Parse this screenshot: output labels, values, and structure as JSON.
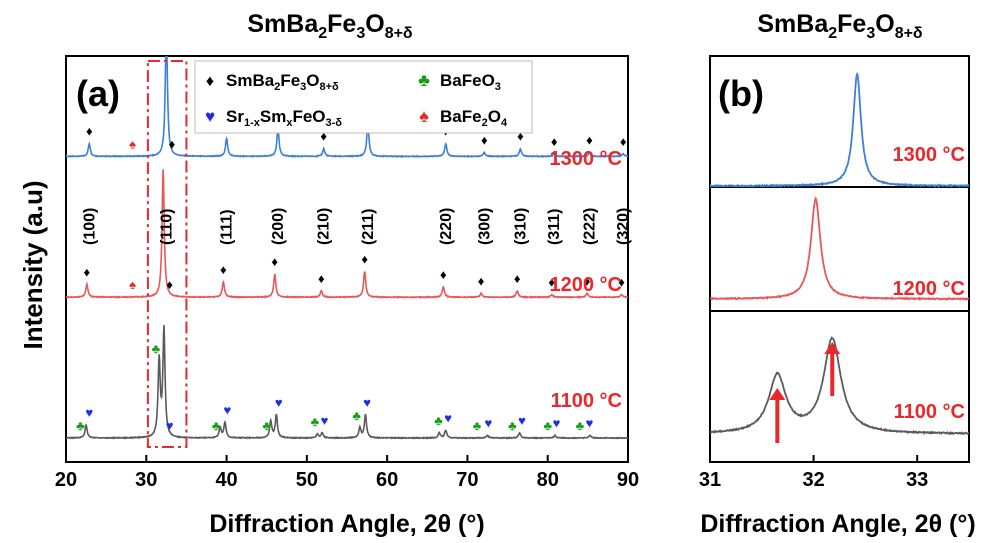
{
  "figure": {
    "titles": [
      {
        "main": "SmBa",
        "s1": "2",
        "m2": "Fe",
        "s2": "3",
        "m3": "O",
        "s3": "8+δ"
      },
      {
        "main": "SmBa",
        "s1": "2",
        "m2": "Fe",
        "s2": "3",
        "m3": "O",
        "s3": "8+δ"
      }
    ],
    "ylabel": "Intensity (a.u)",
    "panel_labels": [
      "(a)",
      "(b)"
    ]
  },
  "legend": {
    "items": [
      {
        "symbol": "♦",
        "color": "#000000",
        "base": "SmBa",
        "s1": "2",
        "b2": "Fe",
        "s2": "3",
        "b3": "O",
        "s3": "8+δ"
      },
      {
        "symbol": "♣",
        "color": "#1a9e1a",
        "base": "BaFeO",
        "s1": "3",
        "b2": "",
        "s2": "",
        "b3": "",
        "s3": ""
      },
      {
        "symbol": "♥",
        "color": "#1e2ee6",
        "base": "Sr",
        "s1": "1-x",
        "b2": "Sm",
        "s2": "x",
        "b3": "FeO",
        "s3": "3-δ"
      },
      {
        "symbol": "♠",
        "color": "#e8282a",
        "base": "BaFe",
        "s1": "2",
        "b2": "O",
        "s2": "4",
        "b3": "",
        "s3": ""
      }
    ]
  },
  "colors": {
    "1300": "#3f7fd6",
    "1200": "#e8575a",
    "1100": "#5a5a5a",
    "temp_text": "#e8282a",
    "box": "#e8282a",
    "arrow": "#e8282a"
  },
  "chart_data": [
    {
      "type": "line",
      "panel": "(a)",
      "xlabel": "Diffraction Angle, 2θ (°)",
      "ylabel": "Intensity (a.u)",
      "xlim": [
        20,
        90
      ],
      "xticks": [
        20,
        30,
        40,
        50,
        60,
        70,
        80,
        90
      ],
      "y_ticks_shown": false,
      "series": [
        {
          "name": "1300 °C",
          "color": "#3f7fd6",
          "offset": 2.2,
          "peaks": [
            [
              22.9,
              0.1
            ],
            [
              32.5,
              1.0
            ],
            [
              40.0,
              0.14
            ],
            [
              46.4,
              0.22
            ],
            [
              52.1,
              0.06
            ],
            [
              57.6,
              0.26
            ],
            [
              67.3,
              0.1
            ],
            [
              72.1,
              0.03
            ],
            [
              76.6,
              0.06
            ],
            [
              80.8,
              0.02
            ],
            [
              85.2,
              0.03
            ],
            [
              89.4,
              0.02
            ]
          ]
        },
        {
          "name": "1200 °C",
          "color": "#e8575a",
          "offset": 1.1,
          "peaks": [
            [
              22.6,
              0.1
            ],
            [
              32.1,
              1.0
            ],
            [
              39.6,
              0.12
            ],
            [
              46.0,
              0.18
            ],
            [
              51.8,
              0.05
            ],
            [
              57.2,
              0.2
            ],
            [
              67.0,
              0.08
            ],
            [
              71.7,
              0.03
            ],
            [
              76.2,
              0.05
            ],
            [
              80.5,
              0.02
            ],
            [
              84.9,
              0.03
            ],
            [
              89.2,
              0.02
            ]
          ]
        },
        {
          "name": "1100 °C",
          "color": "#5a5a5a",
          "offset": 0.0,
          "peaks": [
            [
              22.5,
              0.1
            ],
            [
              31.6,
              0.6
            ],
            [
              32.2,
              0.84
            ],
            [
              39.2,
              0.08
            ],
            [
              39.8,
              0.12
            ],
            [
              45.5,
              0.13
            ],
            [
              46.2,
              0.18
            ],
            [
              51.3,
              0.03
            ],
            [
              51.9,
              0.04
            ],
            [
              56.6,
              0.08
            ],
            [
              57.3,
              0.18
            ],
            [
              66.5,
              0.04
            ],
            [
              67.3,
              0.06
            ],
            [
              72.5,
              0.02
            ],
            [
              76.5,
              0.04
            ],
            [
              80.9,
              0.02
            ],
            [
              85.3,
              0.02
            ]
          ]
        }
      ],
      "hkl_labels": [
        {
          "x": 22.9,
          "label": "(100)"
        },
        {
          "x": 32.5,
          "label": "(110)"
        },
        {
          "x": 40.0,
          "label": "(111)"
        },
        {
          "x": 46.4,
          "label": "(200)"
        },
        {
          "x": 52.1,
          "label": "(210)"
        },
        {
          "x": 57.6,
          "label": "(211)"
        },
        {
          "x": 67.3,
          "label": "(220)"
        },
        {
          "x": 72.1,
          "label": "(300)"
        },
        {
          "x": 76.6,
          "label": "(310)"
        },
        {
          "x": 80.8,
          "label": "(311)"
        },
        {
          "x": 85.2,
          "label": "(222)"
        },
        {
          "x": 89.4,
          "label": "(320)"
        }
      ],
      "temperature_labels": [
        "1300 °C",
        "1200 °C",
        "1100 °C"
      ],
      "highlight_box_x": [
        30.2,
        35.0
      ],
      "markers": [
        {
          "series": 0,
          "x": 22.9,
          "symbol": "♦",
          "color": "#000000"
        },
        {
          "series": 0,
          "x": 28.3,
          "symbol": "♠",
          "color": "#e8282a"
        },
        {
          "series": 0,
          "x": 33.2,
          "symbol": "♦",
          "color": "#000000"
        },
        {
          "series": 0,
          "x": 40.0,
          "symbol": "♦",
          "color": "#000000"
        },
        {
          "series": 0,
          "x": 46.4,
          "symbol": "♦",
          "color": "#000000"
        },
        {
          "series": 0,
          "x": 52.1,
          "symbol": "♦",
          "color": "#000000"
        },
        {
          "series": 0,
          "x": 57.6,
          "symbol": "♦",
          "color": "#000000"
        },
        {
          "series": 0,
          "x": 67.3,
          "symbol": "♦",
          "color": "#000000"
        },
        {
          "series": 0,
          "x": 72.1,
          "symbol": "♦",
          "color": "#000000"
        },
        {
          "series": 0,
          "x": 76.6,
          "symbol": "♦",
          "color": "#000000"
        },
        {
          "series": 0,
          "x": 80.8,
          "symbol": "♦",
          "color": "#000000"
        },
        {
          "series": 0,
          "x": 85.2,
          "symbol": "♦",
          "color": "#000000"
        },
        {
          "series": 0,
          "x": 89.4,
          "symbol": "♦",
          "color": "#000000"
        },
        {
          "series": 1,
          "x": 22.6,
          "symbol": "♦",
          "color": "#000000"
        },
        {
          "series": 1,
          "x": 28.3,
          "symbol": "♠",
          "color": "#e8282a"
        },
        {
          "series": 1,
          "x": 32.9,
          "symbol": "♦",
          "color": "#000000"
        },
        {
          "series": 1,
          "x": 39.6,
          "symbol": "♦",
          "color": "#000000"
        },
        {
          "series": 1,
          "x": 46.0,
          "symbol": "♦",
          "color": "#000000"
        },
        {
          "series": 1,
          "x": 51.8,
          "symbol": "♦",
          "color": "#000000"
        },
        {
          "series": 1,
          "x": 57.2,
          "symbol": "♦",
          "color": "#000000"
        },
        {
          "series": 1,
          "x": 67.0,
          "symbol": "♦",
          "color": "#000000"
        },
        {
          "series": 1,
          "x": 71.7,
          "symbol": "♦",
          "color": "#000000"
        },
        {
          "series": 1,
          "x": 76.2,
          "symbol": "♦",
          "color": "#000000"
        },
        {
          "series": 1,
          "x": 80.5,
          "symbol": "♦",
          "color": "#000000"
        },
        {
          "series": 1,
          "x": 84.9,
          "symbol": "♦",
          "color": "#000000"
        },
        {
          "series": 1,
          "x": 89.2,
          "symbol": "♦",
          "color": "#000000"
        },
        {
          "series": 2,
          "x": 21.8,
          "symbol": "♣",
          "color": "#1a9e1a"
        },
        {
          "series": 2,
          "x": 22.9,
          "symbol": "♥",
          "color": "#1e2ee6"
        },
        {
          "series": 2,
          "x": 31.2,
          "symbol": "♣",
          "color": "#1a9e1a"
        },
        {
          "series": 2,
          "x": 32.9,
          "symbol": "♥",
          "color": "#1e2ee6"
        },
        {
          "series": 2,
          "x": 38.7,
          "symbol": "♣",
          "color": "#1a9e1a"
        },
        {
          "series": 2,
          "x": 40.1,
          "symbol": "♥",
          "color": "#1e2ee6"
        },
        {
          "series": 2,
          "x": 45.0,
          "symbol": "♣",
          "color": "#1a9e1a"
        },
        {
          "series": 2,
          "x": 46.5,
          "symbol": "♥",
          "color": "#1e2ee6"
        },
        {
          "series": 2,
          "x": 51.0,
          "symbol": "♣",
          "color": "#1a9e1a"
        },
        {
          "series": 2,
          "x": 52.2,
          "symbol": "♥",
          "color": "#1e2ee6"
        },
        {
          "series": 2,
          "x": 56.2,
          "symbol": "♣",
          "color": "#1a9e1a"
        },
        {
          "series": 2,
          "x": 57.5,
          "symbol": "♥",
          "color": "#1e2ee6"
        },
        {
          "series": 2,
          "x": 66.4,
          "symbol": "♣",
          "color": "#1a9e1a"
        },
        {
          "series": 2,
          "x": 67.6,
          "symbol": "♥",
          "color": "#1e2ee6"
        },
        {
          "series": 2,
          "x": 71.2,
          "symbol": "♣",
          "color": "#1a9e1a"
        },
        {
          "series": 2,
          "x": 72.6,
          "symbol": "♥",
          "color": "#1e2ee6"
        },
        {
          "series": 2,
          "x": 75.6,
          "symbol": "♣",
          "color": "#1a9e1a"
        },
        {
          "series": 2,
          "x": 76.8,
          "symbol": "♥",
          "color": "#1e2ee6"
        },
        {
          "series": 2,
          "x": 80.0,
          "symbol": "♣",
          "color": "#1a9e1a"
        },
        {
          "series": 2,
          "x": 81.1,
          "symbol": "♥",
          "color": "#1e2ee6"
        },
        {
          "series": 2,
          "x": 84.0,
          "symbol": "♣",
          "color": "#1a9e1a"
        },
        {
          "series": 2,
          "x": 85.2,
          "symbol": "♥",
          "color": "#1e2ee6"
        }
      ]
    },
    {
      "type": "line",
      "panel": "(b)",
      "xlabel": "Diffraction Angle, 2θ (°)",
      "xlim": [
        31,
        33.5
      ],
      "xticks": [
        31,
        32,
        33
      ],
      "y_ticks_shown": false,
      "series": [
        {
          "name": "1300 °C",
          "color": "#3f7fd6",
          "peaks": [
            [
              32.42,
              1.0
            ]
          ],
          "width": 0.045
        },
        {
          "name": "1200 °C",
          "color": "#e8575a",
          "peaks": [
            [
              32.02,
              1.0
            ]
          ],
          "width": 0.055
        },
        {
          "name": "1100 °C",
          "color": "#5a5a5a",
          "peaks": [
            [
              31.65,
              0.5
            ],
            [
              32.18,
              0.82
            ]
          ],
          "width": 0.1
        }
      ],
      "arrows_at_x": [
        31.65,
        32.18
      ]
    }
  ]
}
